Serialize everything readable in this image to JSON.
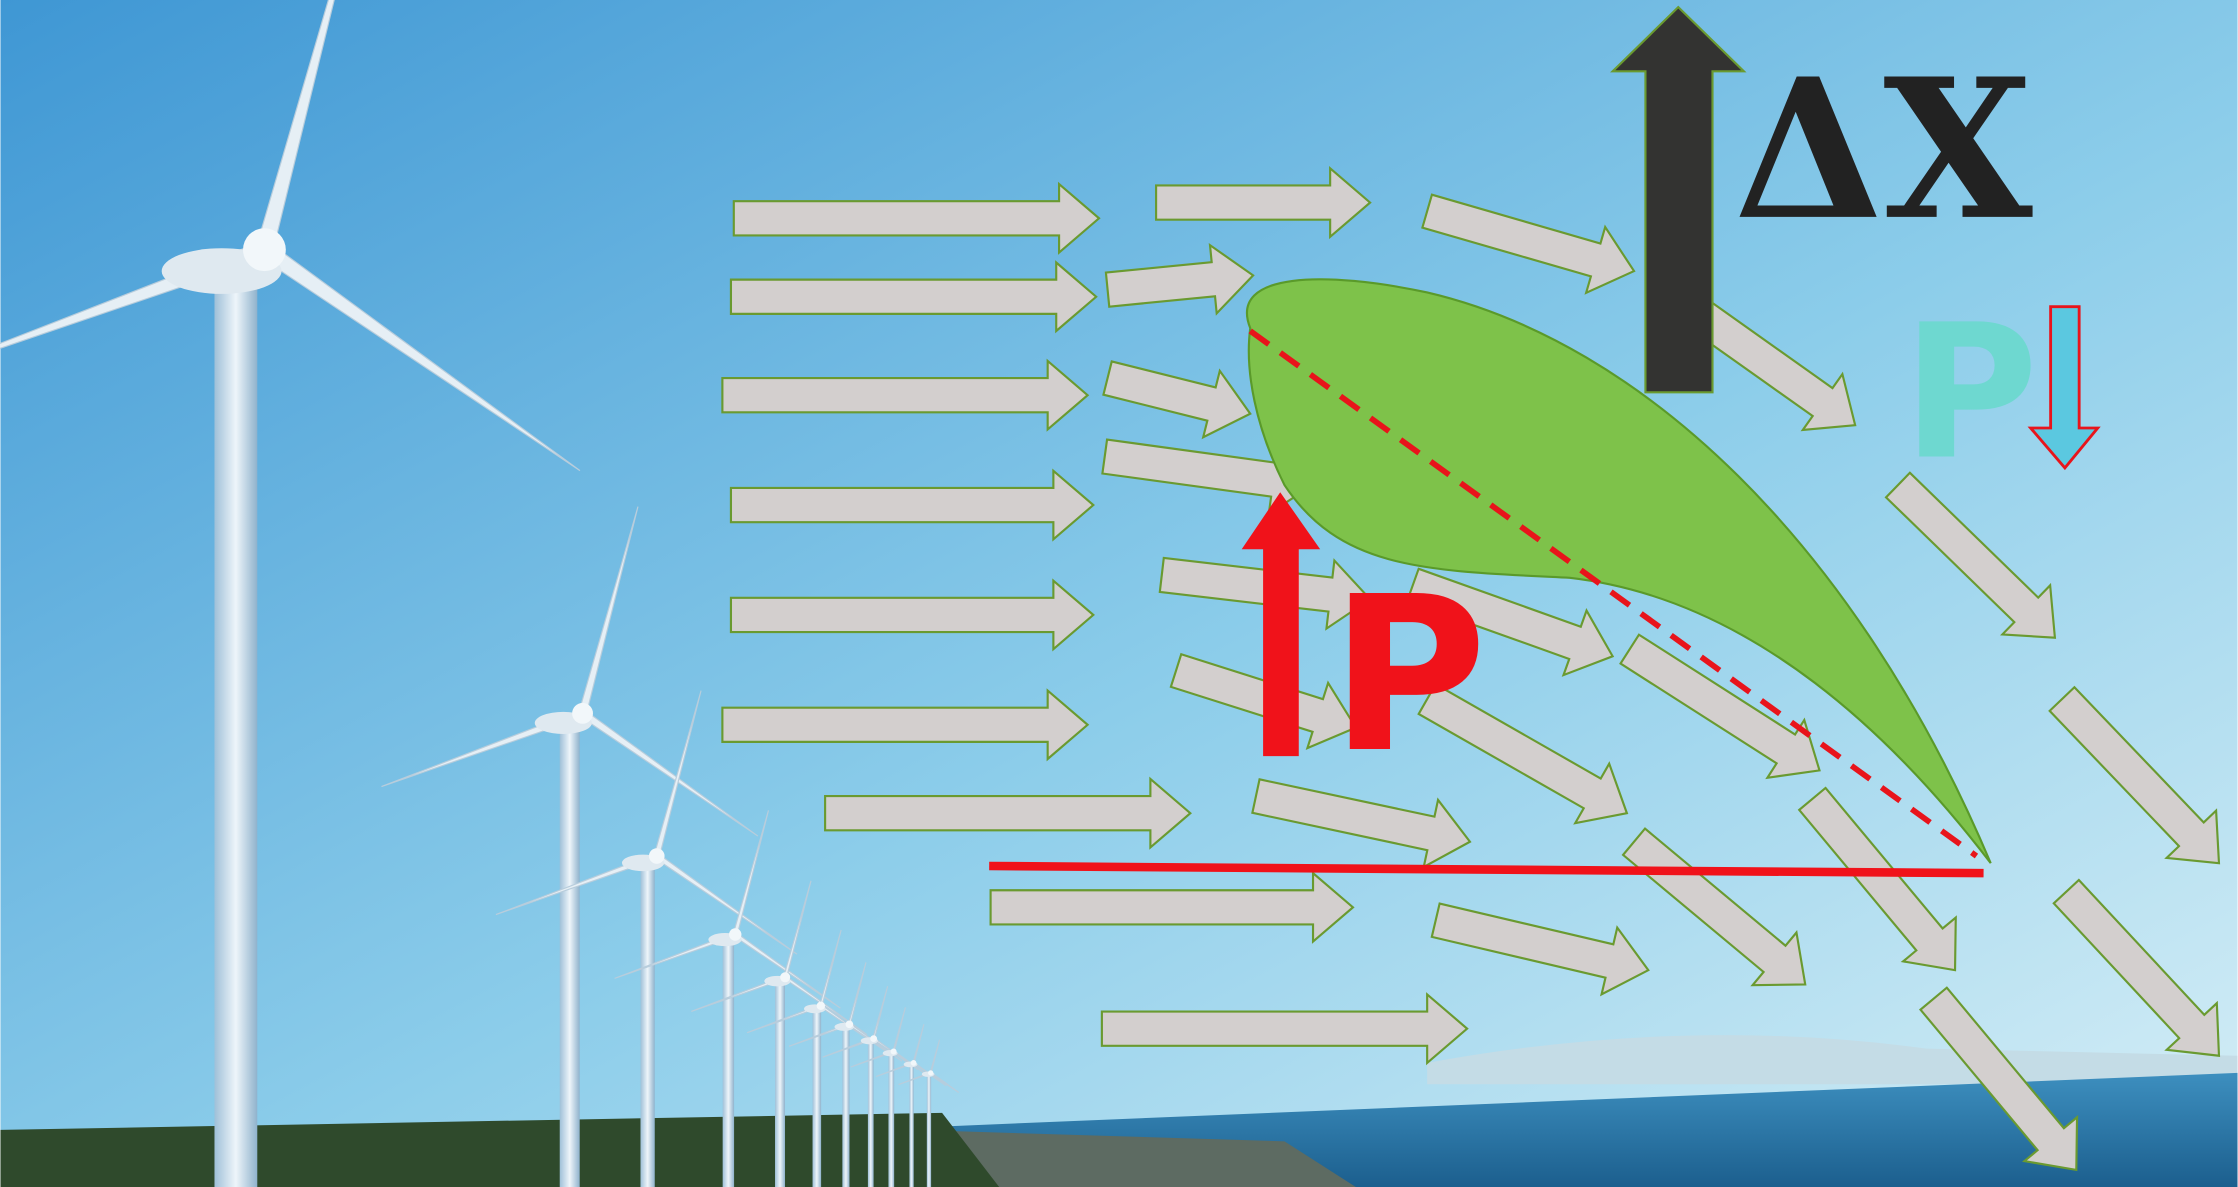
{
  "labels": {
    "delta_x": "ΔX",
    "pressure_low": "P",
    "pressure_high": "P"
  }
}
